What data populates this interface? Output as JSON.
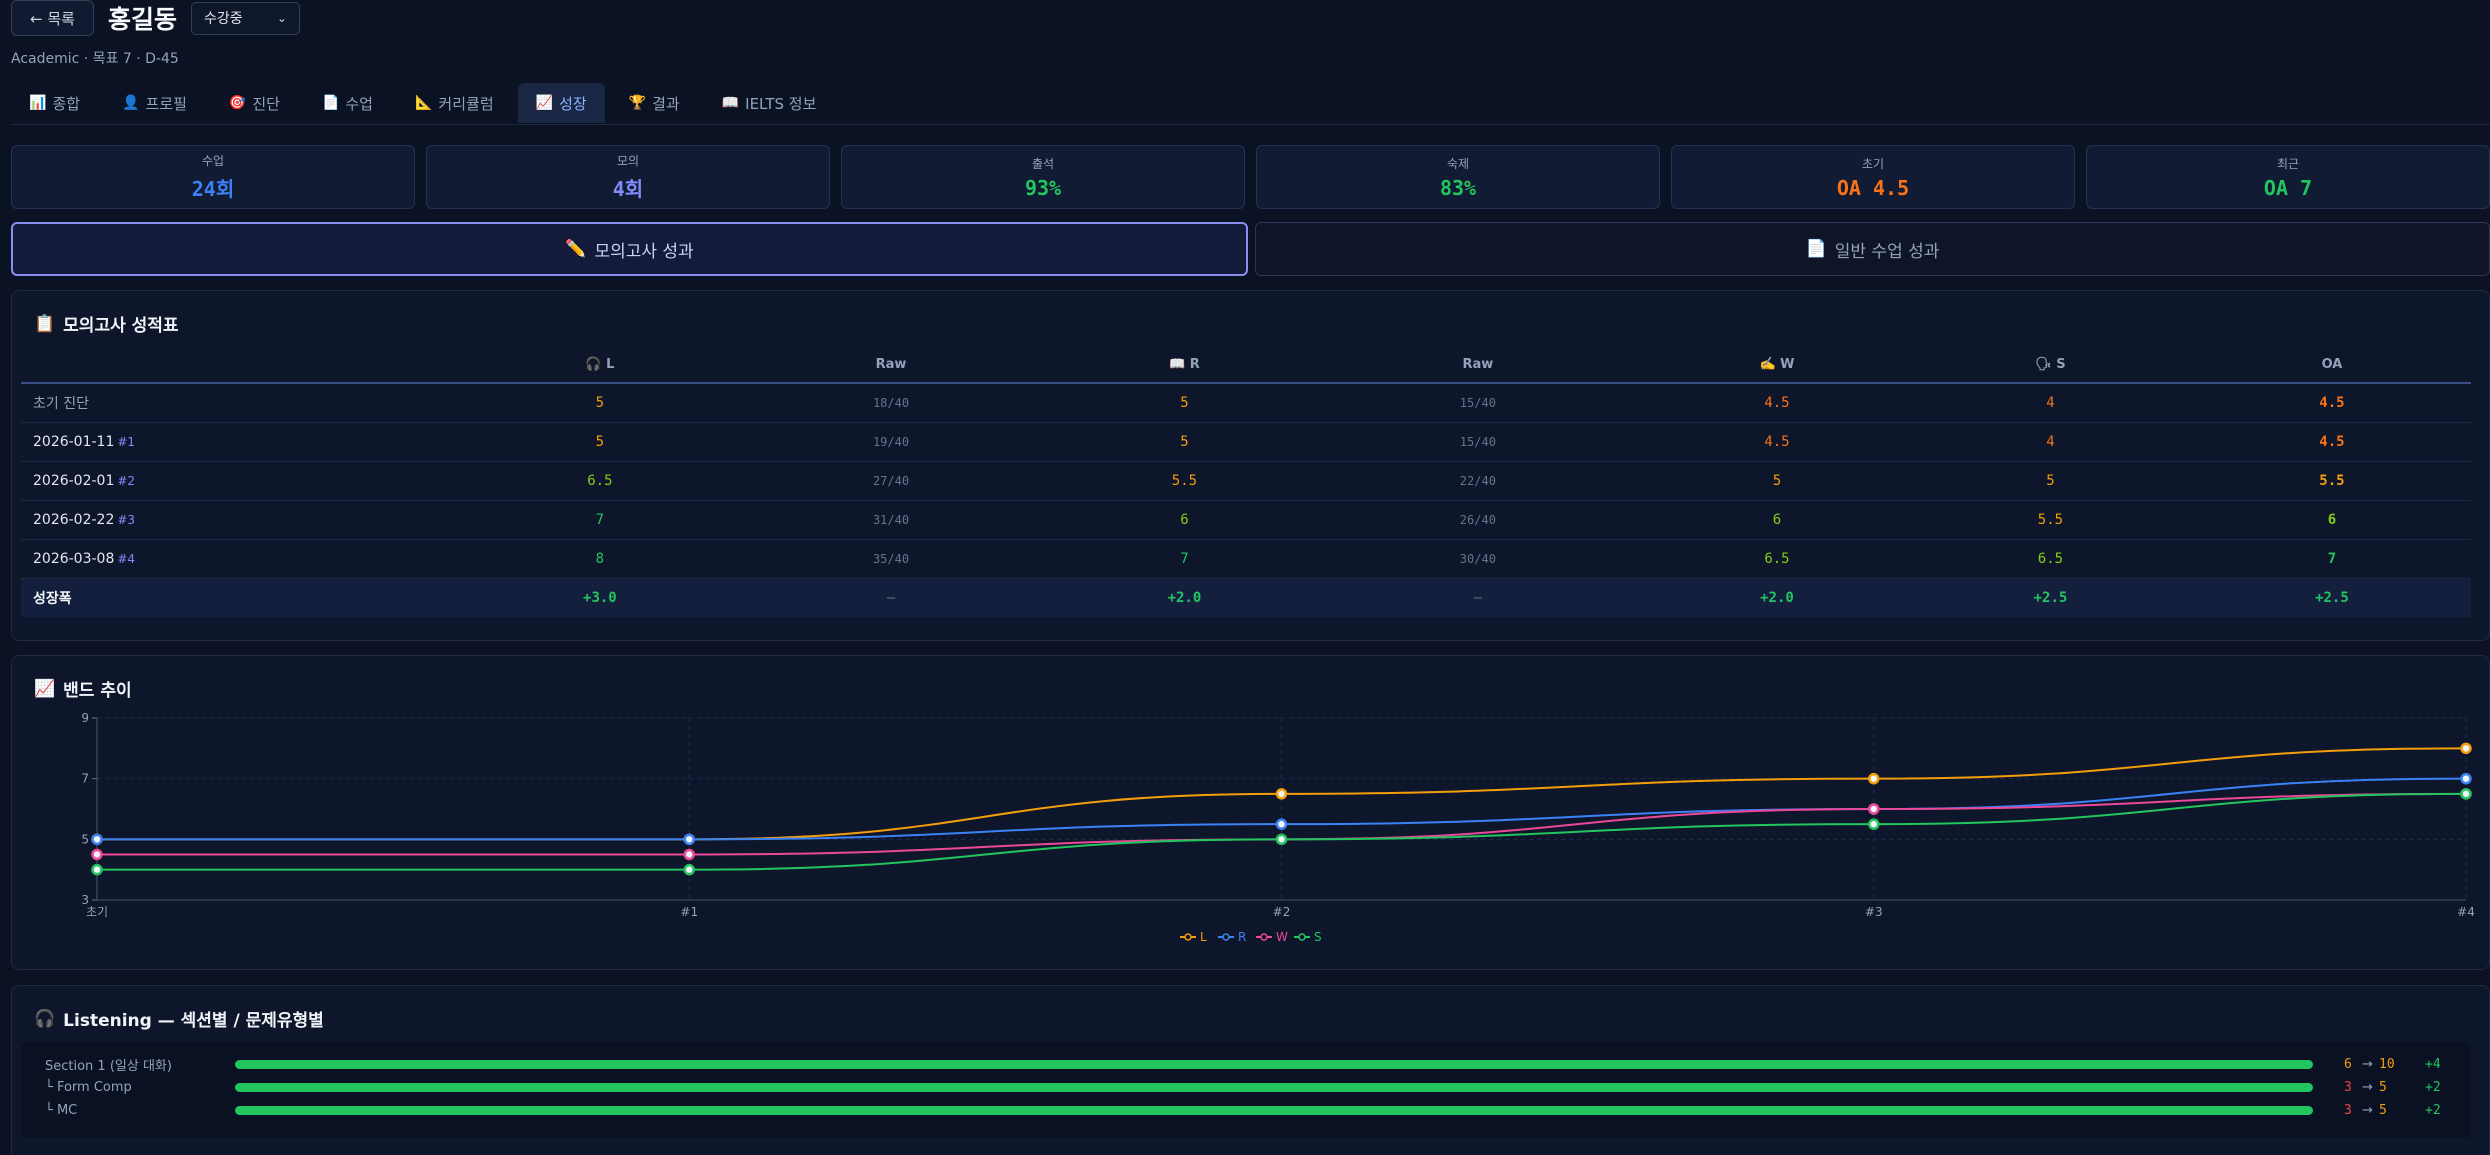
{
  "header": {
    "back_label": "← 목록",
    "student_name": "홍길동",
    "status_value": "수강중",
    "subtitle": "Academic · 목표 7 · D-45"
  },
  "tabs": [
    {
      "icon": "📊",
      "label": "종합"
    },
    {
      "icon": "👤",
      "label": "프로필"
    },
    {
      "icon": "🎯",
      "label": "진단"
    },
    {
      "icon": "📄",
      "label": "수업"
    },
    {
      "icon": "📐",
      "label": "커리큘럼"
    },
    {
      "icon": "📈",
      "label": "성장"
    },
    {
      "icon": "🏆",
      "label": "결과"
    },
    {
      "icon": "📖",
      "label": "IELTS 정보"
    }
  ],
  "active_tab": "성장",
  "stats": [
    {
      "label": "수업",
      "value": "24회",
      "color": "#3b82f6"
    },
    {
      "label": "모의",
      "value": "4회",
      "color": "#818cf8"
    },
    {
      "label": "출석",
      "value": "93%",
      "color": "#22c55e"
    },
    {
      "label": "숙제",
      "value": "83%",
      "color": "#22c55e"
    },
    {
      "label": "초기",
      "value": "OA 4.5",
      "color": "#f97316"
    },
    {
      "label": "최근",
      "value": "OA 7",
      "color": "#22c55e"
    }
  ],
  "toggles": {
    "mock_label": "모의고사 성과",
    "mock_icon": "✏️",
    "regular_label": "일반 수업 성과",
    "regular_icon": "📄"
  },
  "score_table": {
    "title": "모의고사 성적표",
    "title_icon": "📋",
    "headers": [
      "",
      "🎧 L",
      "Raw",
      "📖 R",
      "Raw",
      "✍️ W",
      "🗣 S",
      "OA"
    ],
    "rows": [
      {
        "label": "초기 진단",
        "num": "",
        "L": "5",
        "Lraw": "18/40",
        "R": "5",
        "Rraw": "15/40",
        "W": "4.5",
        "S": "4",
        "OA": "4.5"
      },
      {
        "label": "2026-01-11",
        "num": "#1",
        "L": "5",
        "Lraw": "19/40",
        "R": "5",
        "Rraw": "15/40",
        "W": "4.5",
        "S": "4",
        "OA": "4.5"
      },
      {
        "label": "2026-02-01",
        "num": "#2",
        "L": "6.5",
        "Lraw": "27/40",
        "R": "5.5",
        "Rraw": "22/40",
        "W": "5",
        "S": "5",
        "OA": "5.5"
      },
      {
        "label": "2026-02-22",
        "num": "#3",
        "L": "7",
        "Lraw": "31/40",
        "R": "6",
        "Rraw": "26/40",
        "W": "6",
        "S": "5.5",
        "OA": "6"
      },
      {
        "label": "2026-03-08",
        "num": "#4",
        "L": "8",
        "Lraw": "35/40",
        "R": "7",
        "Rraw": "30/40",
        "W": "6.5",
        "S": "6.5",
        "OA": "7"
      }
    ],
    "growth": {
      "label": "성장폭",
      "L": "+3.0",
      "Lraw": "—",
      "R": "+2.0",
      "Rraw": "—",
      "W": "+2.0",
      "S": "+2.5",
      "OA": "+2.5"
    }
  },
  "band_colors": {
    "4": "#f97316",
    "4.5": "#f97316",
    "5": "#f59e0b",
    "5.5": "#f59e0b",
    "6": "#84cc16",
    "6.5": "#84cc16",
    "7": "#22c55e",
    "8": "#22c55e"
  },
  "chart": {
    "title": "밴드 추이",
    "title_icon": "📈"
  },
  "chart_data": {
    "type": "line",
    "categories": [
      "초기",
      "#1",
      "#2",
      "#3",
      "#4"
    ],
    "ylim": [
      3,
      9
    ],
    "yticks": [
      3,
      5,
      7,
      9
    ],
    "grid": true,
    "legend_position": "bottom-center",
    "series": [
      {
        "name": "L",
        "color": "#f59e0b",
        "values": [
          5,
          5,
          6.5,
          7,
          8
        ]
      },
      {
        "name": "R",
        "color": "#3b82f6",
        "values": [
          5,
          5,
          5.5,
          6,
          7
        ]
      },
      {
        "name": "W",
        "color": "#ec4899",
        "values": [
          4.5,
          4.5,
          5,
          6,
          6.5
        ]
      },
      {
        "name": "S",
        "color": "#22c55e",
        "values": [
          4,
          4,
          5,
          5.5,
          6.5
        ]
      }
    ]
  },
  "listening": {
    "title": "Listening — 섹션별 / 문제유형별",
    "title_icon": "🎧",
    "rows": [
      {
        "name": "Section 1 (일상 대화)",
        "from": "6",
        "to": "10",
        "delta": "+4",
        "from_color": "#f59e0b",
        "progress": 1.0
      },
      {
        "name": "└ Form Comp",
        "from": "3",
        "to": "5",
        "delta": "+2",
        "from_color": "#ef4444",
        "progress": 1.0
      },
      {
        "name": "└ MC",
        "from": "3",
        "to": "5",
        "delta": "+2",
        "from_color": "#ef4444",
        "progress": 1.0
      }
    ]
  }
}
